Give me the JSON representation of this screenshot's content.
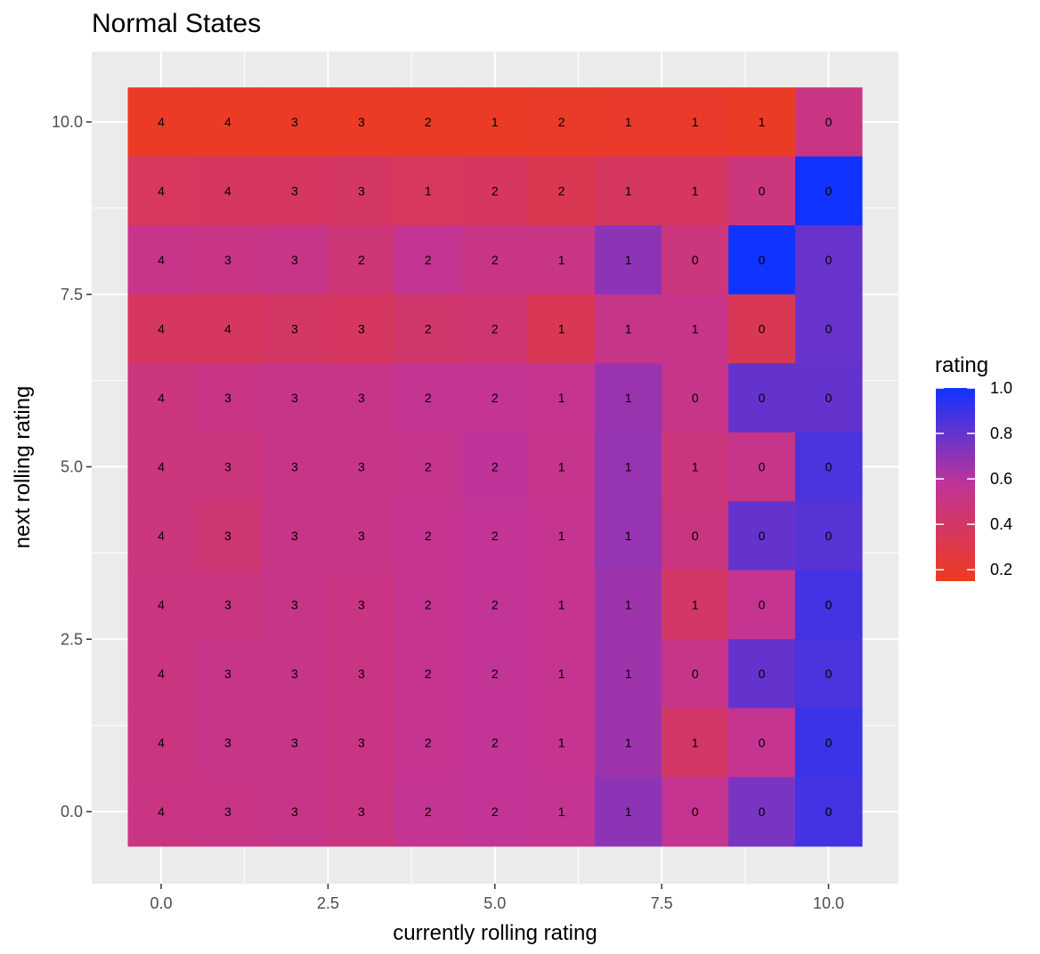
{
  "chart_data": {
    "type": "heatmap",
    "title": "Normal States",
    "xlabel": "currently rolling rating",
    "ylabel": "next rolling rating",
    "x": [
      0,
      1,
      2,
      3,
      4,
      5,
      6,
      7,
      8,
      9,
      10
    ],
    "y": [
      0,
      1,
      2,
      3,
      4,
      5,
      6,
      7,
      8,
      9,
      10
    ],
    "xlim": [
      -1,
      11
    ],
    "ylim": [
      -1,
      11
    ],
    "x_ticks": [
      0,
      2.5,
      5,
      7.5,
      10
    ],
    "x_tick_labels": [
      "0.0",
      "2.5",
      "5.0",
      "7.5",
      "10.0"
    ],
    "y_ticks": [
      0,
      2.5,
      5,
      7.5,
      10
    ],
    "y_tick_labels": [
      "0.0",
      "2.5",
      "5.0",
      "7.5",
      "10.0"
    ],
    "grid": true,
    "legend": {
      "title": "rating",
      "placement": "right",
      "range": [
        0.15,
        1.0
      ],
      "ticks": [
        0.2,
        0.4,
        0.6,
        0.8,
        1.0
      ],
      "tick_labels": [
        "0.2",
        "0.4",
        "0.6",
        "0.8",
        "1.0"
      ],
      "low_color": "#ed3b20",
      "mid_color": "#c13497",
      "high_color": "#1133ff"
    },
    "rows": [
      {
        "y": 10,
        "labels": [
          "4",
          "4",
          "3",
          "3",
          "2",
          "1",
          "2",
          "1",
          "1",
          "1",
          "0"
        ],
        "fill": [
          0.17,
          0.17,
          0.17,
          0.17,
          0.17,
          0.17,
          0.18,
          0.19,
          0.19,
          0.17,
          0.5
        ]
      },
      {
        "y": 9,
        "labels": [
          "4",
          "4",
          "3",
          "3",
          "1",
          "2",
          "2",
          "1",
          "1",
          "0",
          "0"
        ],
        "fill": [
          0.36,
          0.37,
          0.38,
          0.39,
          0.36,
          0.37,
          0.33,
          0.38,
          0.38,
          0.48,
          1.0
        ]
      },
      {
        "y": 8,
        "labels": [
          "4",
          "3",
          "3",
          "2",
          "2",
          "2",
          "1",
          "1",
          "0",
          "0",
          "0"
        ],
        "fill": [
          0.52,
          0.51,
          0.52,
          0.46,
          0.56,
          0.51,
          0.51,
          0.7,
          0.48,
          1.0,
          0.79
        ]
      },
      {
        "y": 7,
        "labels": [
          "4",
          "4",
          "3",
          "3",
          "2",
          "2",
          "1",
          "1",
          "1",
          "0",
          "0"
        ],
        "fill": [
          0.37,
          0.37,
          0.39,
          0.38,
          0.42,
          0.44,
          0.34,
          0.52,
          0.53,
          0.34,
          0.79
        ]
      },
      {
        "y": 6,
        "labels": [
          "4",
          "3",
          "3",
          "3",
          "2",
          "2",
          "1",
          "1",
          "0",
          "0",
          "0"
        ],
        "fill": [
          0.48,
          0.51,
          0.52,
          0.52,
          0.56,
          0.56,
          0.55,
          0.67,
          0.53,
          0.8,
          0.8
        ]
      },
      {
        "y": 5,
        "labels": [
          "4",
          "3",
          "3",
          "3",
          "2",
          "2",
          "1",
          "1",
          "1",
          "0",
          "0"
        ],
        "fill": [
          0.48,
          0.48,
          0.52,
          0.52,
          0.54,
          0.58,
          0.54,
          0.68,
          0.48,
          0.53,
          0.86
        ]
      },
      {
        "y": 4,
        "labels": [
          "4",
          "3",
          "3",
          "3",
          "2",
          "2",
          "1",
          "1",
          "0",
          "0",
          "0"
        ],
        "fill": [
          0.48,
          0.45,
          0.52,
          0.52,
          0.55,
          0.57,
          0.55,
          0.68,
          0.49,
          0.8,
          0.83
        ]
      },
      {
        "y": 3,
        "labels": [
          "4",
          "3",
          "3",
          "3",
          "2",
          "2",
          "1",
          "1",
          "1",
          "0",
          "0"
        ],
        "fill": [
          0.49,
          0.49,
          0.52,
          0.5,
          0.55,
          0.57,
          0.55,
          0.66,
          0.4,
          0.55,
          0.88
        ]
      },
      {
        "y": 2,
        "labels": [
          "4",
          "3",
          "3",
          "3",
          "2",
          "2",
          "1",
          "1",
          "0",
          "0",
          "0"
        ],
        "fill": [
          0.49,
          0.52,
          0.52,
          0.5,
          0.55,
          0.57,
          0.55,
          0.66,
          0.53,
          0.8,
          0.86
        ]
      },
      {
        "y": 1,
        "labels": [
          "4",
          "3",
          "3",
          "3",
          "2",
          "2",
          "1",
          "1",
          "1",
          "0",
          "0"
        ],
        "fill": [
          0.49,
          0.52,
          0.52,
          0.5,
          0.55,
          0.57,
          0.55,
          0.66,
          0.4,
          0.55,
          0.9
        ]
      },
      {
        "y": 0,
        "labels": [
          "4",
          "3",
          "3",
          "3",
          "2",
          "2",
          "1",
          "1",
          "0",
          "0",
          "0"
        ],
        "fill": [
          0.5,
          0.51,
          0.52,
          0.5,
          0.56,
          0.57,
          0.56,
          0.7,
          0.55,
          0.75,
          0.88
        ]
      }
    ]
  }
}
